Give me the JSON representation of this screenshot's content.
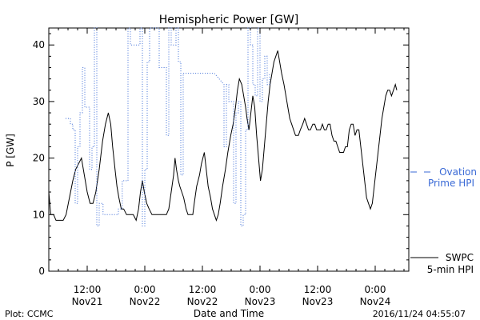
{
  "chart_data": {
    "type": "line",
    "title": "Hemispheric Power [GW]",
    "xlabel": "Date and Time",
    "ylabel": "P [GW]",
    "x_unit": "hours since 2016-11-20 00:00 UTC",
    "xlim": [
      28,
      103
    ],
    "ylim": [
      0,
      43
    ],
    "y_ticks": [
      0,
      10,
      20,
      30,
      40
    ],
    "x_ticks": [
      {
        "x": 36,
        "time": "12:00",
        "date": "Nov21"
      },
      {
        "x": 48,
        "time": "0:00",
        "date": "Nov22"
      },
      {
        "x": 60,
        "time": "12:00",
        "date": "Nov22"
      },
      {
        "x": 72,
        "time": "0:00",
        "date": "Nov23"
      },
      {
        "x": 84,
        "time": "12:00",
        "date": "Nov23"
      },
      {
        "x": 96,
        "time": "0:00",
        "date": "Nov24"
      }
    ],
    "grid": false,
    "legend_placement": "right",
    "series": [
      {
        "name": "SWPC 5-min HPI",
        "legend_lines": [
          "SWPC",
          "5-min HPI"
        ],
        "color": "#000000",
        "style": "solid",
        "points": [
          [
            28.0,
            14
          ],
          [
            28.4,
            10
          ],
          [
            29.0,
            10
          ],
          [
            29.5,
            9
          ],
          [
            30.5,
            9
          ],
          [
            31.0,
            9
          ],
          [
            31.6,
            10
          ],
          [
            32.3,
            13
          ],
          [
            33.0,
            16
          ],
          [
            33.6,
            18
          ],
          [
            34.2,
            19
          ],
          [
            34.8,
            20
          ],
          [
            35.4,
            17
          ],
          [
            36.0,
            14
          ],
          [
            36.6,
            12
          ],
          [
            37.2,
            12
          ],
          [
            37.8,
            14
          ],
          [
            38.5,
            18
          ],
          [
            39.2,
            23
          ],
          [
            39.8,
            26
          ],
          [
            40.4,
            28
          ],
          [
            40.9,
            26
          ],
          [
            41.3,
            22
          ],
          [
            41.8,
            18
          ],
          [
            42.2,
            15
          ],
          [
            42.6,
            13
          ],
          [
            43.1,
            11
          ],
          [
            43.6,
            11
          ],
          [
            44.2,
            10
          ],
          [
            45.0,
            10
          ],
          [
            45.6,
            10
          ],
          [
            46.2,
            9
          ],
          [
            46.7,
            11
          ],
          [
            47.1,
            14
          ],
          [
            47.5,
            16
          ],
          [
            47.9,
            14
          ],
          [
            48.4,
            12
          ],
          [
            48.9,
            11
          ],
          [
            49.5,
            10
          ],
          [
            50.1,
            10
          ],
          [
            50.8,
            10
          ],
          [
            51.4,
            10
          ],
          [
            52.0,
            10
          ],
          [
            52.5,
            10
          ],
          [
            53.0,
            11
          ],
          [
            53.5,
            14
          ],
          [
            54.0,
            17
          ],
          [
            54.3,
            20
          ],
          [
            54.6,
            18
          ],
          [
            55.0,
            16
          ],
          [
            55.3,
            15
          ],
          [
            55.7,
            14
          ],
          [
            56.1,
            13
          ],
          [
            56.6,
            11
          ],
          [
            57.0,
            10
          ],
          [
            57.5,
            10
          ],
          [
            58.0,
            10
          ],
          [
            58.3,
            12
          ],
          [
            58.8,
            15
          ],
          [
            59.4,
            17
          ],
          [
            59.8,
            19
          ],
          [
            60.4,
            21
          ],
          [
            60.8,
            18
          ],
          [
            61.2,
            15
          ],
          [
            61.7,
            13
          ],
          [
            62.1,
            11
          ],
          [
            62.5,
            10
          ],
          [
            62.9,
            9
          ],
          [
            63.3,
            10
          ],
          [
            63.7,
            12
          ],
          [
            64.2,
            15
          ],
          [
            64.8,
            18
          ],
          [
            65.3,
            21
          ],
          [
            65.9,
            24
          ],
          [
            66.4,
            26
          ],
          [
            66.9,
            29
          ],
          [
            67.3,
            32
          ],
          [
            67.7,
            34
          ],
          [
            68.2,
            33
          ],
          [
            68.6,
            31
          ],
          [
            69.0,
            29
          ],
          [
            69.3,
            27
          ],
          [
            69.7,
            25
          ],
          [
            70.1,
            28
          ],
          [
            70.5,
            31
          ],
          [
            70.9,
            29
          ],
          [
            71.3,
            24
          ],
          [
            71.7,
            20
          ],
          [
            72.1,
            16
          ],
          [
            72.5,
            18
          ],
          [
            72.9,
            22
          ],
          [
            73.3,
            26
          ],
          [
            73.7,
            30
          ],
          [
            74.1,
            33
          ],
          [
            74.5,
            35
          ],
          [
            74.9,
            37
          ],
          [
            75.3,
            38
          ],
          [
            75.7,
            39
          ],
          [
            76.1,
            37
          ],
          [
            76.5,
            35
          ],
          [
            77.0,
            33
          ],
          [
            77.4,
            31
          ],
          [
            77.8,
            29
          ],
          [
            78.2,
            27
          ],
          [
            78.6,
            26
          ],
          [
            79.0,
            25
          ],
          [
            79.4,
            24
          ],
          [
            80.0,
            24
          ],
          [
            80.4,
            25
          ],
          [
            80.9,
            26
          ],
          [
            81.3,
            27
          ],
          [
            81.7,
            26
          ],
          [
            82.1,
            25
          ],
          [
            82.5,
            25
          ],
          [
            83.0,
            26
          ],
          [
            83.4,
            26
          ],
          [
            83.8,
            25
          ],
          [
            84.2,
            25
          ],
          [
            84.6,
            25
          ],
          [
            85.0,
            26
          ],
          [
            85.4,
            25
          ],
          [
            85.8,
            25
          ],
          [
            86.2,
            26
          ],
          [
            86.6,
            26
          ],
          [
            87.0,
            24
          ],
          [
            87.4,
            23
          ],
          [
            87.8,
            23
          ],
          [
            88.2,
            22
          ],
          [
            88.6,
            21
          ],
          [
            89.0,
            21
          ],
          [
            89.4,
            21
          ],
          [
            89.8,
            22
          ],
          [
            90.2,
            22
          ],
          [
            90.6,
            25
          ],
          [
            91.0,
            26
          ],
          [
            91.4,
            26
          ],
          [
            91.8,
            24
          ],
          [
            92.2,
            25
          ],
          [
            92.6,
            25
          ],
          [
            93.0,
            22
          ],
          [
            93.4,
            19
          ],
          [
            93.8,
            16
          ],
          [
            94.2,
            13
          ],
          [
            94.6,
            12
          ],
          [
            95.0,
            11
          ],
          [
            95.4,
            12
          ],
          [
            95.8,
            15
          ],
          [
            96.2,
            18
          ],
          [
            96.6,
            21
          ],
          [
            97.0,
            24
          ],
          [
            97.4,
            27
          ],
          [
            97.8,
            29
          ],
          [
            98.2,
            31
          ],
          [
            98.6,
            32
          ],
          [
            99.0,
            32
          ],
          [
            99.4,
            31
          ],
          [
            99.8,
            32
          ],
          [
            100.2,
            33
          ],
          [
            100.5,
            32
          ]
        ]
      },
      {
        "name": "Ovation Prime HPI",
        "legend_lines": [
          "Ovation",
          "Prime HPI"
        ],
        "color": "#3a6ad6",
        "style": "dotted",
        "points": [
          [
            31.5,
            27
          ],
          [
            32.5,
            27
          ],
          [
            32.5,
            26
          ],
          [
            33.0,
            26
          ],
          [
            33.0,
            25
          ],
          [
            33.5,
            25
          ],
          [
            33.5,
            12
          ],
          [
            34.0,
            12
          ],
          [
            34.0,
            22
          ],
          [
            34.5,
            22
          ],
          [
            34.5,
            28
          ],
          [
            35.0,
            28
          ],
          [
            35.0,
            36
          ],
          [
            35.5,
            36
          ],
          [
            35.5,
            29
          ],
          [
            36.5,
            29
          ],
          [
            36.5,
            18
          ],
          [
            37.0,
            18
          ],
          [
            37.0,
            22
          ],
          [
            37.5,
            22
          ],
          [
            37.5,
            43
          ],
          [
            38.0,
            43
          ],
          [
            38.0,
            8
          ],
          [
            38.5,
            8
          ],
          [
            38.5,
            12
          ],
          [
            39.3,
            12
          ],
          [
            39.3,
            10
          ],
          [
            42.5,
            10
          ],
          [
            42.5,
            11
          ],
          [
            43.3,
            11
          ],
          [
            43.3,
            16
          ],
          [
            44.5,
            16
          ],
          [
            44.5,
            43
          ],
          [
            45.0,
            43
          ],
          [
            45.0,
            40
          ],
          [
            47.0,
            40
          ],
          [
            47.0,
            43
          ],
          [
            47.5,
            43
          ],
          [
            47.5,
            8
          ],
          [
            48.0,
            8
          ],
          [
            48.0,
            18
          ],
          [
            48.5,
            18
          ],
          [
            48.5,
            37
          ],
          [
            49.0,
            37
          ],
          [
            49.0,
            43
          ],
          [
            51.0,
            43
          ],
          [
            51.0,
            36
          ],
          [
            52.5,
            36
          ],
          [
            52.5,
            24
          ],
          [
            53.0,
            24
          ],
          [
            53.0,
            43
          ],
          [
            53.5,
            43
          ],
          [
            53.5,
            40
          ],
          [
            54.5,
            40
          ],
          [
            54.5,
            43
          ],
          [
            55.0,
            43
          ],
          [
            55.0,
            37
          ],
          [
            55.5,
            37
          ],
          [
            55.5,
            17
          ],
          [
            56.0,
            17
          ],
          [
            56.0,
            35
          ],
          [
            62.5,
            35
          ],
          [
            64.5,
            33
          ],
          [
            64.5,
            22
          ],
          [
            65.0,
            22
          ],
          [
            65.0,
            33
          ],
          [
            65.5,
            33
          ],
          [
            65.5,
            30
          ],
          [
            66.5,
            30
          ],
          [
            66.5,
            12
          ],
          [
            67.0,
            12
          ],
          [
            67.0,
            28
          ],
          [
            67.5,
            28
          ],
          [
            67.5,
            30
          ],
          [
            68.0,
            30
          ],
          [
            68.0,
            8
          ],
          [
            68.5,
            8
          ],
          [
            68.5,
            10
          ],
          [
            69.0,
            10
          ],
          [
            69.0,
            25
          ],
          [
            69.5,
            25
          ],
          [
            69.5,
            43
          ],
          [
            70.0,
            43
          ],
          [
            70.0,
            40
          ],
          [
            70.5,
            40
          ],
          [
            70.5,
            33
          ],
          [
            71.0,
            33
          ],
          [
            71.0,
            31
          ],
          [
            71.5,
            31
          ],
          [
            71.5,
            43
          ],
          [
            72.0,
            43
          ],
          [
            72.0,
            30
          ],
          [
            72.5,
            30
          ],
          [
            72.5,
            34
          ],
          [
            73.0,
            34
          ],
          [
            73.0,
            38
          ],
          [
            73.5,
            38
          ],
          [
            73.5,
            33
          ],
          [
            74.0,
            33
          ],
          [
            74.0,
            35
          ]
        ]
      }
    ]
  },
  "footer": {
    "left": "Plot: CCMC",
    "right": "2016/11/24 04:55:07"
  }
}
